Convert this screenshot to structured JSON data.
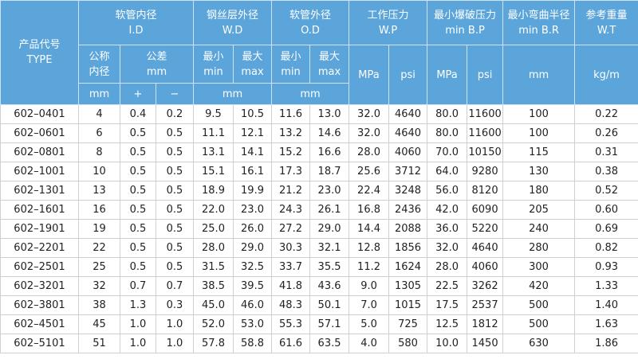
{
  "header": {
    "type": {
      "zh": "产品代号",
      "en": "TYPE"
    },
    "id": {
      "zh": "软管内径",
      "en": "I.D"
    },
    "wd": {
      "zh": "钢丝层外径",
      "en": "W.D"
    },
    "od": {
      "zh": "软管外径",
      "en": "O.D"
    },
    "wp": {
      "zh": "工作压力",
      "en": "W.P"
    },
    "bp": {
      "zh": "最小爆破压力",
      "en": "min B.P"
    },
    "br": {
      "zh": "最小弯曲半径",
      "en": "min B.R"
    },
    "wt": {
      "zh": "参考重量",
      "en": "W.T"
    },
    "nominal": {
      "line1": "公称",
      "line2": "内径"
    },
    "tolerance": {
      "zh": "公差",
      "en": "mm"
    },
    "wd_min": {
      "zh": "最小",
      "en": "min"
    },
    "wd_max": {
      "zh": "最大",
      "en": "max"
    },
    "od_min": {
      "zh": "最小",
      "en": "min"
    },
    "od_max": {
      "zh": "最大",
      "en": "max"
    },
    "wp_mpa": "MPa",
    "wp_psi": "psi",
    "bp_mpa": "MPa",
    "bp_psi": "psi",
    "br_unit": "mm",
    "wt_unit": "kg/m",
    "id_unit": "mm",
    "plus": "+",
    "minus": "−",
    "wd_unit": "mm",
    "od_unit": "mm"
  },
  "table": {
    "rows": [
      [
        "602–0401",
        "4",
        "0.4",
        "0.2",
        "9.5",
        "10.5",
        "11.6",
        "13.0",
        "32.0",
        "4640",
        "80.0",
        "11600",
        "100",
        "0.22"
      ],
      [
        "602–0601",
        "6",
        "0.5",
        "0.5",
        "11.1",
        "12.1",
        "13.2",
        "14.6",
        "32.0",
        "4640",
        "80.0",
        "11600",
        "100",
        "0.26"
      ],
      [
        "602–0801",
        "8",
        "0.5",
        "0.5",
        "13.1",
        "14.1",
        "15.2",
        "16.6",
        "28.0",
        "4060",
        "70.0",
        "10150",
        "115",
        "0.31"
      ],
      [
        "602–1001",
        "10",
        "0.5",
        "0.5",
        "15.1",
        "16.1",
        "17.3",
        "18.7",
        "25.6",
        "3712",
        "64.0",
        "9280",
        "130",
        "0.38"
      ],
      [
        "602–1301",
        "13",
        "0.5",
        "0.5",
        "18.9",
        "19.9",
        "21.2",
        "23.0",
        "22.4",
        "3248",
        "56.0",
        "8120",
        "180",
        "0.52"
      ],
      [
        "602–1601",
        "16",
        "0.5",
        "0.5",
        "22.0",
        "23.0",
        "24.3",
        "26.1",
        "16.8",
        "2436",
        "42.0",
        "6090",
        "205",
        "0.60"
      ],
      [
        "602–1901",
        "19",
        "0.5",
        "0.5",
        "25.0",
        "26.0",
        "27.2",
        "29.0",
        "14.4",
        "2088",
        "36.0",
        "5220",
        "240",
        "0.69"
      ],
      [
        "602–2201",
        "22",
        "0.5",
        "0.5",
        "28.0",
        "29.0",
        "30.3",
        "32.1",
        "12.8",
        "1856",
        "32.0",
        "4640",
        "280",
        "0.82"
      ],
      [
        "602–2501",
        "25",
        "0.5",
        "0.5",
        "31.5",
        "32.5",
        "33.7",
        "35.5",
        "11.2",
        "1624",
        "28.0",
        "4060",
        "300",
        "0.93"
      ],
      [
        "602–3201",
        "32",
        "0.7",
        "0.7",
        "38.5",
        "39.5",
        "41.8",
        "43.6",
        "9.0",
        "1305",
        "22.5",
        "3262",
        "420",
        "1.33"
      ],
      [
        "602–3801",
        "38",
        "1.3",
        "0.3",
        "45.0",
        "46.0",
        "48.3",
        "50.1",
        "7.0",
        "1015",
        "17.5",
        "2537",
        "500",
        "1.40"
      ],
      [
        "602–4501",
        "45",
        "1.0",
        "1.0",
        "52.0",
        "53.0",
        "55.3",
        "57.1",
        "5.0",
        "725",
        "12.5",
        "1812",
        "500",
        "1.63"
      ],
      [
        "602–5101",
        "51",
        "1.0",
        "1.0",
        "57.8",
        "58.8",
        "61.6",
        "63.5",
        "4.0",
        "580",
        "10.0",
        "1450",
        "630",
        "1.86"
      ]
    ]
  }
}
